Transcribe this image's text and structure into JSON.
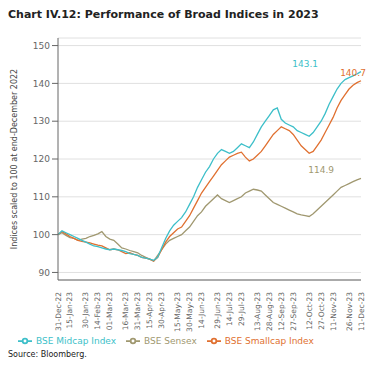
{
  "chart_data": {
    "type": "line",
    "title": "Chart IV.12: Performance of Broad Indices in 2023",
    "y_label": "Indices scaled to 100 at end-December 2022",
    "caption": "Source: Bloomberg.",
    "ylim": [
      88,
      152
    ],
    "yticks": [
      90,
      100,
      110,
      120,
      130,
      140,
      150
    ],
    "grid": true,
    "legend": "bottom",
    "categories": [
      "31-Dec-22",
      null,
      null,
      "15-Jan-23",
      null,
      null,
      null,
      "30-Jan-23",
      null,
      null,
      "14-Feb-23",
      null,
      null,
      "01-Mar-23",
      null,
      null,
      null,
      "16-Mar-23",
      null,
      null,
      "31-Mar-23",
      null,
      null,
      "15-Apr-23",
      null,
      null,
      "30-Apr-23",
      null,
      null,
      null,
      "15-May-23",
      null,
      null,
      "30-May-23",
      null,
      null,
      "14-Jun-23",
      null,
      null,
      null,
      "29-Jun-23",
      null,
      null,
      "14-Jul-23",
      null,
      null,
      "29-Jul-23",
      null,
      null,
      null,
      "13-Aug-23",
      null,
      null,
      "28-Aug-23",
      null,
      null,
      "12-Sep-23",
      null,
      null,
      "27-Sep-23",
      null,
      null,
      null,
      "12-Oct-23",
      null,
      null,
      "27-Oct-23",
      null,
      null,
      "11-Nov-23",
      null,
      null,
      null,
      "26-Nov-23",
      null,
      null,
      "11-Dec-23"
    ],
    "series": [
      {
        "name": "BSE Sensex",
        "color": "#a09870",
        "values": [
          100.0,
          100.5,
          99.8,
          99.2,
          99.0,
          98.5,
          98.8,
          99.0,
          99.5,
          99.8,
          100.2,
          100.8,
          99.5,
          98.8,
          98.5,
          97.5,
          96.5,
          96.2,
          95.8,
          95.5,
          95.2,
          94.5,
          94.0,
          93.5,
          93.0,
          94.5,
          96.0,
          97.5,
          98.5,
          99.0,
          99.5,
          100.0,
          101.0,
          102.0,
          103.5,
          105.0,
          106.0,
          107.5,
          108.5,
          109.5,
          110.5,
          109.5,
          109.0,
          108.5,
          109.0,
          109.5,
          110.0,
          111.0,
          111.5,
          112.0,
          111.8,
          111.5,
          110.5,
          109.5,
          108.5,
          108.0,
          107.5,
          107.0,
          106.5,
          106.0,
          105.5,
          105.2,
          105.0,
          104.8,
          105.5,
          106.5,
          107.5,
          108.5,
          109.5,
          110.5,
          111.5,
          112.5,
          113.0,
          113.5,
          114.0,
          114.5,
          114.9
        ]
      },
      {
        "name": "BSE Smallcap Index",
        "color": "#e07030",
        "values": [
          100.0,
          100.8,
          100.2,
          99.5,
          99.0,
          98.5,
          98.2,
          98.0,
          97.8,
          97.5,
          97.2,
          97.0,
          96.5,
          96.0,
          96.2,
          96.0,
          95.5,
          95.0,
          95.2,
          94.8,
          94.5,
          94.0,
          93.8,
          93.5,
          93.0,
          94.0,
          96.0,
          98.0,
          99.5,
          100.5,
          101.5,
          102.0,
          103.5,
          105.0,
          107.0,
          109.0,
          111.0,
          112.5,
          114.0,
          115.5,
          117.0,
          118.5,
          119.5,
          120.5,
          121.0,
          121.5,
          121.8,
          120.5,
          119.5,
          120.0,
          121.0,
          122.0,
          123.5,
          125.0,
          126.5,
          127.5,
          128.5,
          128.0,
          127.5,
          126.5,
          125.0,
          123.5,
          122.5,
          121.5,
          122.0,
          123.5,
          125.0,
          127.0,
          129.0,
          131.0,
          133.5,
          135.5,
          137.0,
          138.5,
          139.5,
          140.2,
          140.7
        ]
      },
      {
        "name": "BSE Midcap Index",
        "color": "#3dbfc9",
        "values": [
          100.0,
          101.0,
          100.5,
          100.0,
          99.5,
          99.0,
          98.5,
          98.0,
          97.5,
          97.0,
          96.8,
          96.5,
          96.2,
          96.0,
          96.2,
          96.0,
          95.8,
          95.5,
          95.0,
          94.8,
          94.5,
          94.0,
          93.8,
          93.5,
          93.2,
          94.0,
          96.5,
          99.0,
          101.0,
          102.5,
          103.5,
          104.5,
          106.0,
          108.0,
          110.0,
          112.5,
          114.5,
          116.5,
          118.0,
          120.0,
          121.5,
          122.5,
          122.0,
          121.5,
          122.0,
          123.0,
          124.0,
          123.5,
          123.0,
          124.5,
          126.5,
          128.5,
          130.0,
          131.5,
          133.0,
          133.5,
          130.5,
          129.5,
          129.0,
          128.5,
          127.5,
          127.0,
          126.5,
          126.0,
          127.0,
          128.5,
          130.0,
          132.0,
          134.5,
          136.5,
          138.5,
          140.0,
          141.0,
          141.5,
          142.0,
          142.5,
          143.1
        ]
      }
    ],
    "annotations": [
      {
        "text": "143.1",
        "color": "#3dbfc9",
        "y": 143.1
      },
      {
        "text": "140.7",
        "color": "#e07030",
        "y": 140.7
      },
      {
        "text": "114.9",
        "color": "#a09870",
        "y": 114.9
      }
    ]
  }
}
